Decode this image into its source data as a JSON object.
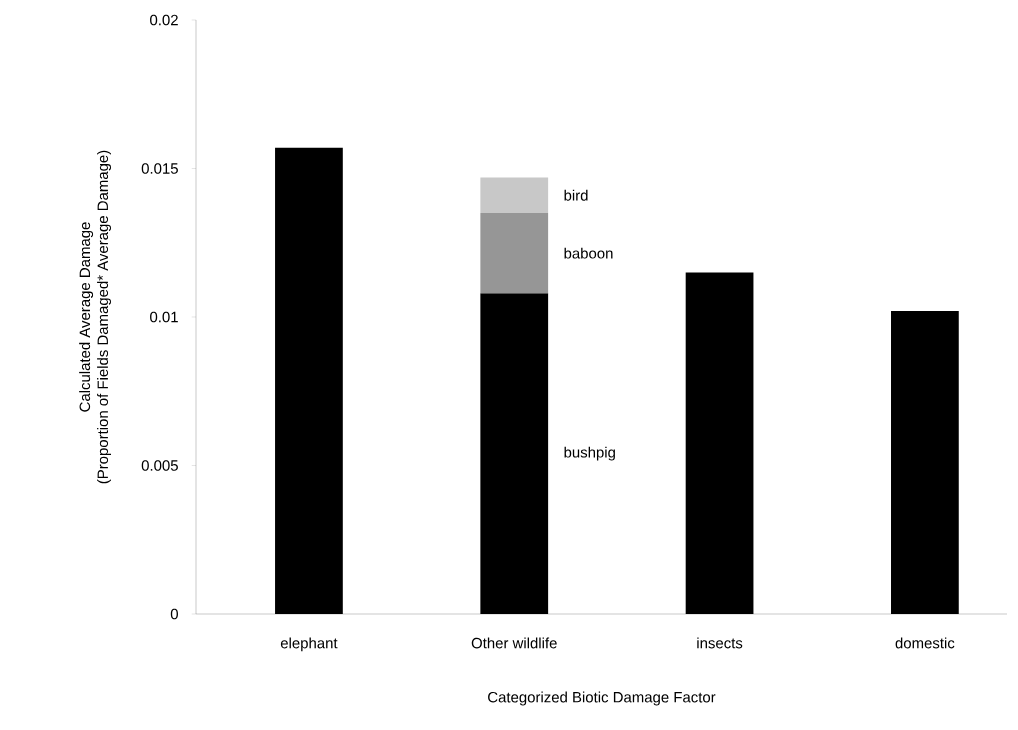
{
  "chart_data": {
    "type": "bar",
    "stacked": true,
    "xlabel": "Categorized Biotic Damage Factor",
    "ylabel": "Calculated Average Damage\n(Proportion of Fields Damaged* Average Damage)",
    "categories": [
      "elephant",
      "Other wildlife",
      "insects",
      "domestic"
    ],
    "series": [
      {
        "color": "#000000",
        "values": [
          0.0157,
          null,
          0.0115,
          0.0102
        ]
      },
      {
        "name": "bushpig",
        "color": "#000000",
        "values": [
          null,
          0.0108,
          null,
          null
        ]
      },
      {
        "name": "baboon",
        "color": "#969696",
        "values": [
          null,
          0.0027,
          null,
          null
        ]
      },
      {
        "name": "bird",
        "color": "#c8c8c8",
        "values": [
          null,
          0.0012,
          null,
          null
        ]
      }
    ],
    "ylim": [
      0,
      0.02
    ],
    "yticks": [
      0,
      0.005,
      0.01,
      0.015,
      0.02
    ],
    "grid": false,
    "legend": false
  }
}
